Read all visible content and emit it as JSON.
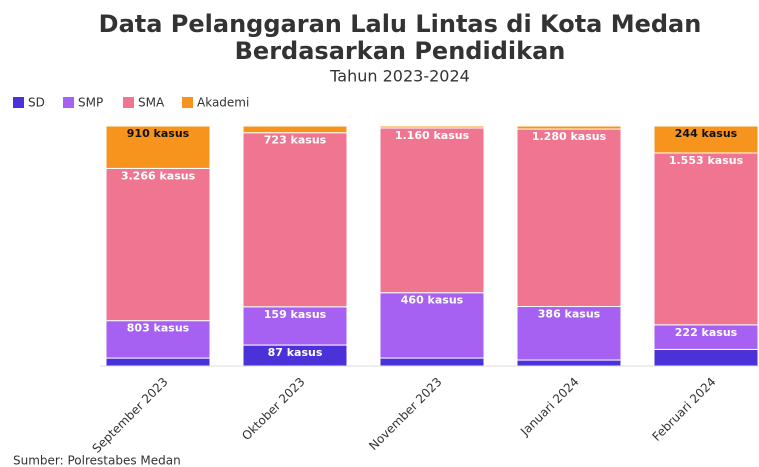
{
  "chart_data": {
    "type": "bar",
    "stacking": "percent",
    "title": "Data Pelanggaran Lalu Lintas di Kota Medan",
    "title_line2": "Berdasarkan Pendidikan",
    "subtitle": "Tahun 2023-2024",
    "source": "Sumber: Polrestabes Medan",
    "legend": "top-left",
    "categories": [
      "September 2023",
      "Oktober 2023",
      "November 2023",
      "Januari 2024",
      "Februari 2024"
    ],
    "series": [
      {
        "name": "SD",
        "color": "#4b32d8",
        "label_color": "#ffffff",
        "values": [
          170,
          87,
          56,
          43,
          150
        ],
        "value_labels": [
          null,
          "87 kasus",
          null,
          null,
          null
        ]
      },
      {
        "name": "SMP",
        "color": "#a661f2",
        "label_color": "#ffffff",
        "values": [
          803,
          159,
          460,
          386,
          222
        ],
        "value_labels": [
          "803 kasus",
          "159 kasus",
          "460 kasus",
          "386 kasus",
          "222 kasus"
        ]
      },
      {
        "name": "SMA",
        "color": "#ef7590",
        "label_color": "#ffffff",
        "values": [
          3266,
          723,
          1160,
          1280,
          1553
        ],
        "value_labels": [
          "3.266 kasus",
          "723 kasus",
          "1.160 kasus",
          "1.280 kasus",
          "1.553 kasus"
        ]
      },
      {
        "name": "Akademi",
        "color": "#f7941d",
        "label_color": "#111111",
        "values": [
          910,
          28,
          14,
          22,
          244
        ],
        "value_labels": [
          "910 kasus",
          null,
          null,
          null,
          "244 kasus"
        ]
      }
    ]
  }
}
